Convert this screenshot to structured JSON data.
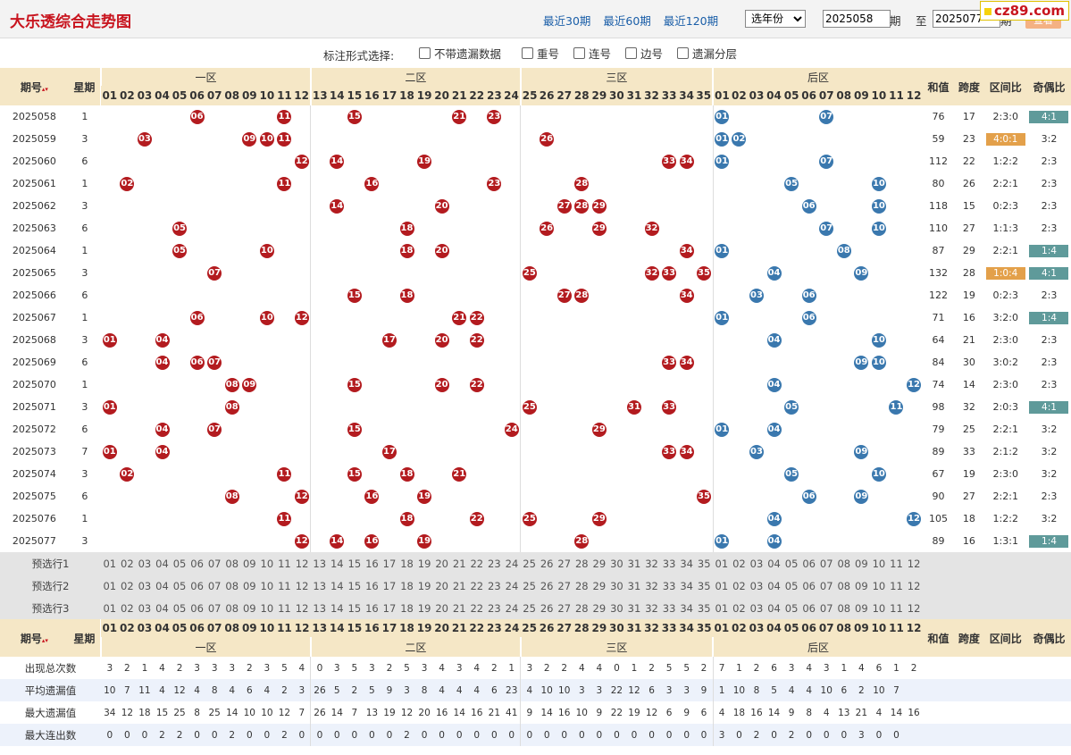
{
  "header": {
    "title": "大乐透综合走势图",
    "links": [
      "最近30期",
      "最近60期",
      "最近120期"
    ],
    "year_select": "选年份",
    "from_period": "2025058",
    "to_label_1": "期",
    "to_label_2": "至",
    "to_period": "2025077",
    "to_label_3": "期",
    "view_button": "查看",
    "watermark": "cz89.com"
  },
  "options": {
    "title": "标注形式选择:",
    "items": [
      "不带遗漏数据",
      "重号",
      "连号",
      "边号",
      "遗漏分层"
    ]
  },
  "table": {
    "col_period": "期号",
    "col_week": "星期",
    "zones": [
      "一区",
      "二区",
      "三区",
      "后区"
    ],
    "front_numbers": [
      "01",
      "02",
      "03",
      "04",
      "05",
      "06",
      "07",
      "08",
      "09",
      "10",
      "11",
      "12",
      "13",
      "14",
      "15",
      "16",
      "17",
      "18",
      "19",
      "20",
      "21",
      "22",
      "23",
      "24",
      "25",
      "26",
      "27",
      "28",
      "29",
      "30",
      "31",
      "32",
      "33",
      "34",
      "35"
    ],
    "back_numbers": [
      "01",
      "02",
      "03",
      "04",
      "05",
      "06",
      "07",
      "08",
      "09",
      "10",
      "11",
      "12"
    ],
    "col_sum": "和值",
    "col_span": "跨度",
    "col_ratio": "区间比",
    "col_odd": "奇偶比",
    "rows": [
      {
        "period": "2025058",
        "week": "1",
        "front": [
          11,
          21,
          23,
          15,
          6
        ],
        "back": [
          1,
          7
        ],
        "sum": "76",
        "span": "17",
        "ratio": "2:3:0",
        "odd": "4:1",
        "odd_hl": "green"
      },
      {
        "period": "2025059",
        "week": "3",
        "front": [
          3,
          9,
          10,
          11,
          26
        ],
        "back": [
          1,
          2
        ],
        "sum": "59",
        "span": "23",
        "ratio": "4:0:1",
        "odd": "3:2",
        "ratio_hl": "orange"
      },
      {
        "period": "2025060",
        "week": "6",
        "front": [
          12,
          14,
          19,
          33,
          34
        ],
        "back": [
          1,
          7
        ],
        "sum": "112",
        "span": "22",
        "ratio": "1:2:2",
        "odd": "2:3"
      },
      {
        "period": "2025061",
        "week": "1",
        "front": [
          2,
          11,
          16,
          23,
          28
        ],
        "back": [
          5,
          10
        ],
        "sum": "80",
        "span": "26",
        "ratio": "2:2:1",
        "odd": "2:3"
      },
      {
        "period": "2025062",
        "week": "3",
        "front": [
          14,
          20,
          27,
          28,
          29
        ],
        "back": [
          6,
          10
        ],
        "sum": "118",
        "span": "15",
        "ratio": "0:2:3",
        "odd": "2:3"
      },
      {
        "period": "2025063",
        "week": "6",
        "front": [
          5,
          18,
          26,
          29,
          32
        ],
        "back": [
          7,
          10
        ],
        "sum": "110",
        "span": "27",
        "ratio": "1:1:3",
        "odd": "2:3"
      },
      {
        "period": "2025064",
        "week": "1",
        "front": [
          5,
          10,
          18,
          20,
          34
        ],
        "back": [
          1,
          8
        ],
        "sum": "87",
        "span": "29",
        "ratio": "2:2:1",
        "odd": "1:4",
        "odd_hl": "green"
      },
      {
        "period": "2025065",
        "week": "3",
        "front": [
          7,
          25,
          32,
          33,
          35
        ],
        "back": [
          4,
          9
        ],
        "sum": "132",
        "span": "28",
        "ratio": "1:0:4",
        "odd": "4:1",
        "ratio_hl": "orange",
        "odd_hl": "green"
      },
      {
        "period": "2025066",
        "week": "6",
        "front": [
          15,
          18,
          27,
          28,
          34
        ],
        "back": [
          3,
          6
        ],
        "sum": "122",
        "span": "19",
        "ratio": "0:2:3",
        "odd": "2:3"
      },
      {
        "period": "2025067",
        "week": "1",
        "front": [
          6,
          10,
          12,
          21,
          22
        ],
        "back": [
          1,
          6
        ],
        "sum": "71",
        "span": "16",
        "ratio": "3:2:0",
        "odd": "1:4",
        "odd_hl": "green"
      },
      {
        "period": "2025068",
        "week": "3",
        "front": [
          1,
          4,
          17,
          20,
          22
        ],
        "back": [
          4,
          10
        ],
        "sum": "64",
        "span": "21",
        "ratio": "2:3:0",
        "odd": "2:3"
      },
      {
        "period": "2025069",
        "week": "6",
        "front": [
          4,
          6,
          7,
          33,
          34
        ],
        "back": [
          9,
          10
        ],
        "sum": "84",
        "span": "30",
        "ratio": "3:0:2",
        "odd": "2:3"
      },
      {
        "period": "2025070",
        "week": "1",
        "front": [
          8,
          9,
          15,
          20,
          22
        ],
        "back": [
          4,
          12
        ],
        "sum": "74",
        "span": "14",
        "ratio": "2:3:0",
        "odd": "2:3"
      },
      {
        "period": "2025071",
        "week": "3",
        "front": [
          1,
          8,
          25,
          31,
          33
        ],
        "back": [
          5,
          11
        ],
        "sum": "98",
        "span": "32",
        "ratio": "2:0:3",
        "odd": "4:1",
        "odd_hl": "green"
      },
      {
        "period": "2025072",
        "week": "6",
        "front": [
          4,
          7,
          15,
          24,
          29
        ],
        "back": [
          1,
          4
        ],
        "sum": "79",
        "span": "25",
        "ratio": "2:2:1",
        "odd": "3:2"
      },
      {
        "period": "2025073",
        "week": "7",
        "front": [
          1,
          4,
          17,
          33,
          34
        ],
        "back": [
          3,
          9
        ],
        "sum": "89",
        "span": "33",
        "ratio": "2:1:2",
        "odd": "3:2"
      },
      {
        "period": "2025074",
        "week": "3",
        "front": [
          2,
          11,
          15,
          18,
          21
        ],
        "back": [
          5,
          10
        ],
        "sum": "67",
        "span": "19",
        "ratio": "2:3:0",
        "odd": "3:2"
      },
      {
        "period": "2025075",
        "week": "6",
        "front": [
          8,
          12,
          16,
          19,
          35
        ],
        "back": [
          6,
          9
        ],
        "sum": "90",
        "span": "27",
        "ratio": "2:2:1",
        "odd": "2:3"
      },
      {
        "period": "2025076",
        "week": "1",
        "front": [
          11,
          18,
          22,
          25,
          29
        ],
        "back": [
          4,
          12
        ],
        "sum": "105",
        "span": "18",
        "ratio": "1:2:2",
        "odd": "3:2"
      },
      {
        "period": "2025077",
        "week": "3",
        "front": [
          12,
          14,
          16,
          19,
          28
        ],
        "back": [
          1,
          4
        ],
        "sum": "89",
        "span": "16",
        "ratio": "1:3:1",
        "odd": "1:4",
        "odd_hl": "green"
      }
    ],
    "preselect_labels": [
      "预选行1",
      "预选行2",
      "预选行3"
    ],
    "stats_labels": [
      "出现总次数",
      "平均遗漏值",
      "最大遗漏值",
      "最大连出数"
    ],
    "stats": [
      [
        "3",
        "2",
        "1",
        "4",
        "2",
        "3",
        "3",
        "3",
        "2",
        "3",
        "5",
        "4",
        "0",
        "3",
        "5",
        "3",
        "2",
        "5",
        "3",
        "4",
        "3",
        "4",
        "2",
        "1",
        "3",
        "2",
        "2",
        "4",
        "4",
        "0",
        "1",
        "2",
        "5",
        "5",
        "2",
        "7",
        "1",
        "2",
        "6",
        "3",
        "4",
        "3",
        "1",
        "4",
        "6",
        "1",
        "2"
      ],
      [
        "10",
        "7",
        "11",
        "4",
        "12",
        "4",
        "8",
        "4",
        "6",
        "4",
        "2",
        "3",
        "26",
        "5",
        "2",
        "5",
        "9",
        "3",
        "8",
        "4",
        "4",
        "4",
        "6",
        "23",
        "4",
        "10",
        "10",
        "3",
        "3",
        "22",
        "12",
        "6",
        "3",
        "3",
        "9",
        "1",
        "10",
        "8",
        "5",
        "4",
        "4",
        "10",
        "6",
        "2",
        "10",
        "7"
      ],
      [
        "34",
        "12",
        "18",
        "15",
        "25",
        "8",
        "25",
        "14",
        "10",
        "10",
        "12",
        "7",
        "26",
        "14",
        "7",
        "13",
        "19",
        "12",
        "20",
        "16",
        "14",
        "16",
        "21",
        "41",
        "9",
        "14",
        "16",
        "10",
        "9",
        "22",
        "19",
        "12",
        "6",
        "9",
        "6",
        "4",
        "18",
        "16",
        "14",
        "9",
        "8",
        "4",
        "13",
        "21",
        "4",
        "14",
        "16"
      ],
      [
        "0",
        "0",
        "0",
        "2",
        "2",
        "0",
        "0",
        "2",
        "0",
        "0",
        "2",
        "0",
        "0",
        "0",
        "0",
        "0",
        "0",
        "2",
        "0",
        "0",
        "0",
        "0",
        "0",
        "0",
        "0",
        "0",
        "0",
        "0",
        "0",
        "0",
        "0",
        "0",
        "0",
        "0",
        "0",
        "3",
        "0",
        "2",
        "0",
        "2",
        "0",
        "0",
        "0",
        "3",
        "0",
        "0"
      ]
    ]
  }
}
